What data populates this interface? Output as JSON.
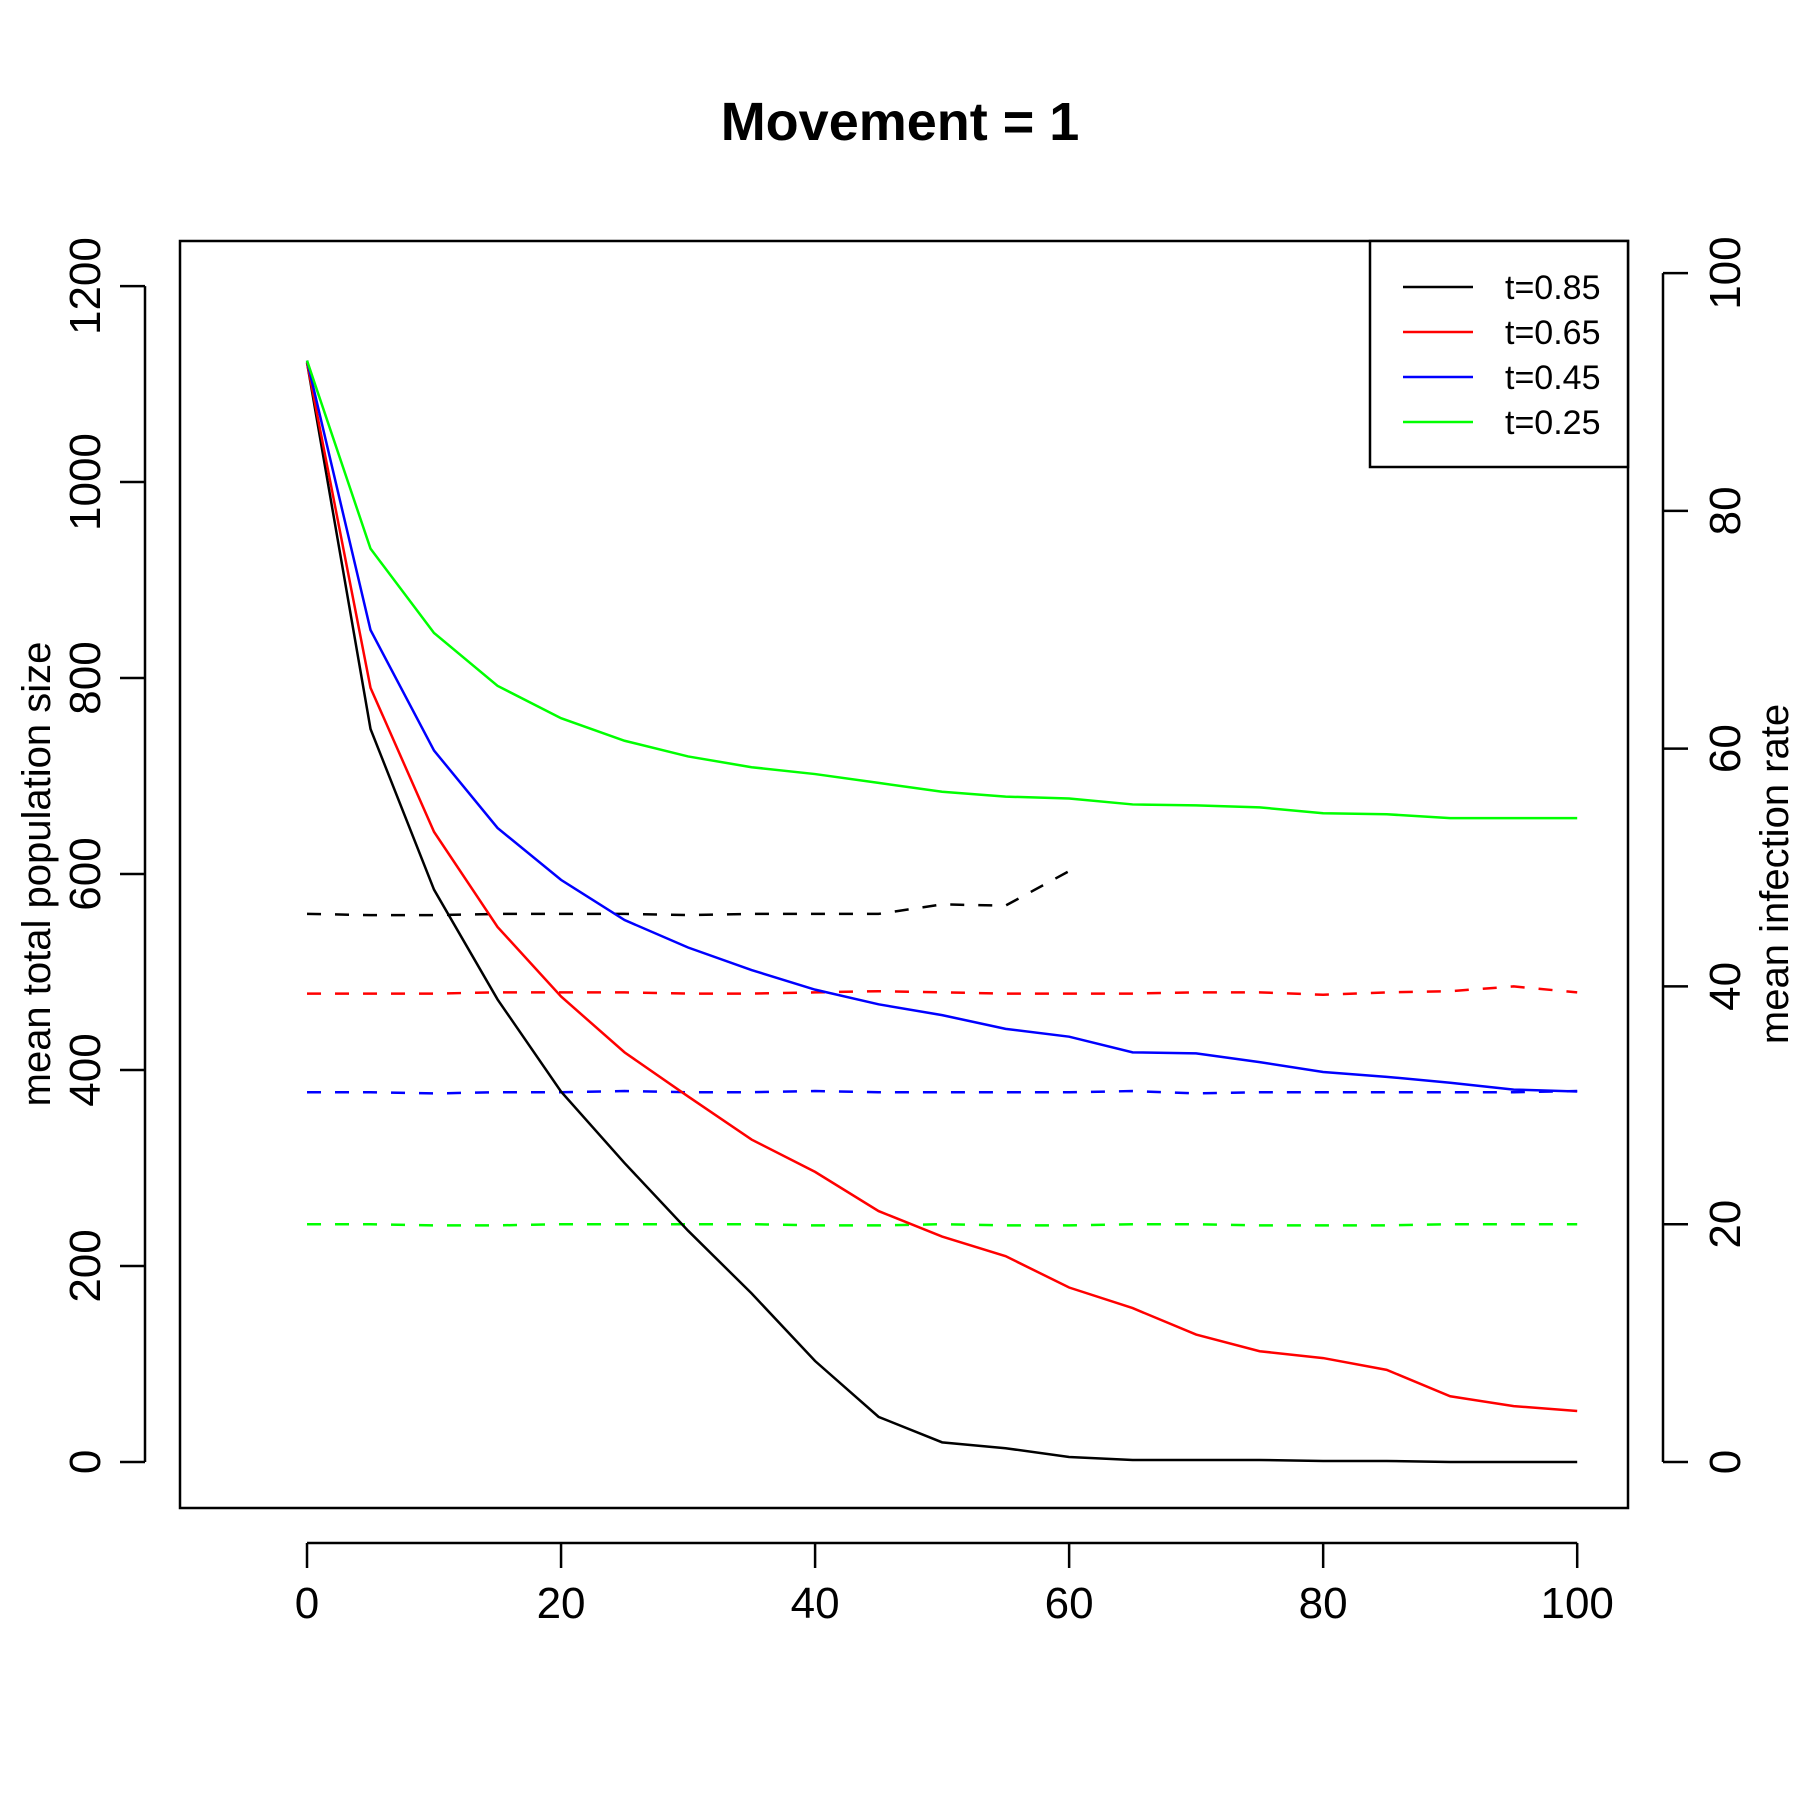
{
  "chart_data": {
    "type": "line",
    "title": "Movement = 1",
    "xlabel": "",
    "ylabel": "mean total population size",
    "y2label": "mean infection rate",
    "xlim": [
      -10,
      104
    ],
    "ylim": [
      -47,
      1246
    ],
    "y2lim": [
      -3.87,
      102.7
    ],
    "x_ticks": [
      0,
      20,
      40,
      60,
      80,
      100
    ],
    "y_ticks": [
      0,
      200,
      400,
      600,
      800,
      1000,
      1200
    ],
    "y2_ticks": [
      0,
      20,
      40,
      60,
      80,
      100
    ],
    "x": [
      0,
      5,
      10,
      15,
      20,
      25,
      30,
      35,
      40,
      45,
      50,
      55,
      60,
      65,
      70,
      75,
      80,
      85,
      90,
      95,
      100
    ],
    "grid": false,
    "legend_position": "top-right",
    "series": [
      {
        "name": "t=0.85",
        "color": "#000000",
        "axis": "left",
        "values": [
          1122,
          748,
          584,
          472,
          378,
          305,
          236,
          172,
          103,
          46,
          20,
          14,
          5,
          2,
          2,
          2,
          1,
          1,
          0,
          0,
          0
        ]
      },
      {
        "name": "t=0.65",
        "color": "#ff0000",
        "axis": "left",
        "values": [
          1122,
          790,
          643,
          546,
          475,
          418,
          373,
          329,
          296,
          256,
          230,
          210,
          178,
          157,
          130,
          113,
          106,
          94,
          67,
          57,
          52
        ]
      },
      {
        "name": "t=0.45",
        "color": "#0000ff",
        "axis": "left",
        "values": [
          1124,
          849,
          726,
          647,
          594,
          553,
          525,
          502,
          482,
          467,
          456,
          442,
          434,
          418,
          417,
          408,
          398,
          393,
          387,
          380,
          378
        ]
      },
      {
        "name": "t=0.25",
        "color": "#00ff00",
        "axis": "left",
        "values": [
          1124,
          932,
          846,
          792,
          759,
          736,
          720,
          709,
          702,
          693,
          684,
          679,
          677,
          671,
          670,
          668,
          662,
          661,
          657,
          657,
          657
        ]
      }
    ],
    "dashed_series": [
      {
        "color": "#000000",
        "axis": "right",
        "values": [
          46.1,
          46.0,
          46.0,
          46.1,
          46.1,
          46.1,
          46.0,
          46.1,
          46.1,
          46.1,
          46.9,
          46.8,
          49.7
        ]
      },
      {
        "color": "#ff0000",
        "axis": "right",
        "values": [
          39.4,
          39.4,
          39.4,
          39.5,
          39.5,
          39.5,
          39.4,
          39.4,
          39.5,
          39.6,
          39.5,
          39.4,
          39.4,
          39.4,
          39.5,
          39.5,
          39.3,
          39.5,
          39.6,
          40.0,
          39.5
        ]
      },
      {
        "color": "#0000ff",
        "axis": "right",
        "values": [
          31.1,
          31.1,
          31.0,
          31.1,
          31.1,
          31.2,
          31.1,
          31.1,
          31.2,
          31.1,
          31.1,
          31.1,
          31.1,
          31.2,
          31.0,
          31.1,
          31.1,
          31.1,
          31.1,
          31.1,
          31.2
        ]
      },
      {
        "color": "#00ff00",
        "axis": "right",
        "values": [
          20.0,
          20.0,
          19.9,
          19.9,
          20.0,
          20.0,
          20.0,
          20.0,
          19.9,
          19.9,
          20.0,
          19.9,
          19.9,
          20.0,
          20.0,
          19.9,
          19.9,
          19.9,
          20.0,
          20.0,
          20.0
        ]
      }
    ]
  }
}
